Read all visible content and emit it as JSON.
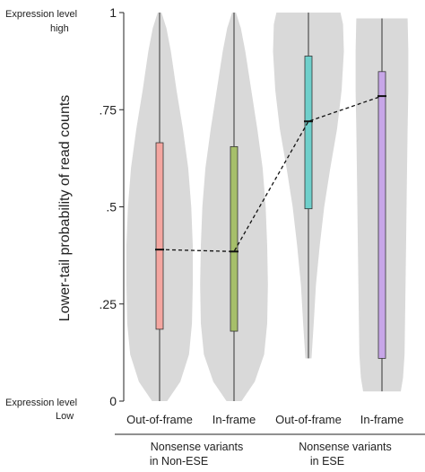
{
  "chart_data": {
    "type": "violin",
    "ylabel": "Lower-tail probability of read counts",
    "ylim": [
      0,
      1
    ],
    "yticks": [
      0,
      0.25,
      0.5,
      0.75,
      1
    ],
    "ytick_labels": [
      "0",
      ".25",
      ".5",
      ".75",
      "1"
    ],
    "y_top_note": [
      "Expression level",
      "high"
    ],
    "y_bottom_note": [
      "Expression level",
      "Low"
    ],
    "categories": [
      "Out-of-frame",
      "In-frame",
      "Out-of-frame",
      "In-frame"
    ],
    "groups": [
      {
        "label": [
          "Nonsense variants",
          "in Non-ESE"
        ],
        "members": [
          0,
          1
        ]
      },
      {
        "label": [
          "Nonsense variants",
          "in ESE"
        ],
        "members": [
          2,
          3
        ]
      }
    ],
    "violin_color": "#d9d9d9",
    "series": [
      {
        "color": "#f4a6a0",
        "min": 0.0,
        "q1": 0.185,
        "median": 0.39,
        "q3": 0.665,
        "max": 1.0,
        "violin": {
          "ymin": 0.0,
          "ymax": 1.0,
          "profile": [
            [
              0.0,
              0.2
            ],
            [
              0.05,
              0.55
            ],
            [
              0.12,
              0.78
            ],
            [
              0.2,
              0.86
            ],
            [
              0.3,
              0.88
            ],
            [
              0.4,
              0.88
            ],
            [
              0.5,
              0.84
            ],
            [
              0.6,
              0.76
            ],
            [
              0.7,
              0.62
            ],
            [
              0.8,
              0.45
            ],
            [
              0.9,
              0.3
            ],
            [
              0.96,
              0.18
            ],
            [
              1.0,
              0.05
            ]
          ]
        }
      },
      {
        "color": "#a6bf6a",
        "min": 0.0,
        "q1": 0.18,
        "median": 0.385,
        "q3": 0.655,
        "max": 1.0,
        "violin": {
          "ymin": 0.0,
          "ymax": 1.0,
          "profile": [
            [
              0.0,
              0.2
            ],
            [
              0.05,
              0.55
            ],
            [
              0.12,
              0.8
            ],
            [
              0.2,
              0.88
            ],
            [
              0.3,
              0.9
            ],
            [
              0.4,
              0.88
            ],
            [
              0.5,
              0.84
            ],
            [
              0.6,
              0.76
            ],
            [
              0.7,
              0.62
            ],
            [
              0.8,
              0.46
            ],
            [
              0.9,
              0.3
            ],
            [
              0.96,
              0.18
            ],
            [
              1.0,
              0.05
            ]
          ]
        }
      },
      {
        "color": "#6fcfcb",
        "min": 0.11,
        "q1": 0.495,
        "median": 0.72,
        "q3": 0.888,
        "max": 1.0,
        "violin": {
          "ymin": 0.11,
          "ymax": 1.0,
          "profile": [
            [
              0.11,
              0.08
            ],
            [
              0.2,
              0.14
            ],
            [
              0.3,
              0.2
            ],
            [
              0.4,
              0.3
            ],
            [
              0.5,
              0.42
            ],
            [
              0.6,
              0.58
            ],
            [
              0.7,
              0.76
            ],
            [
              0.8,
              0.88
            ],
            [
              0.9,
              0.94
            ],
            [
              0.97,
              0.92
            ],
            [
              1.0,
              0.85
            ]
          ]
        }
      },
      {
        "color": "#c7a6e8",
        "min": 0.025,
        "q1": 0.11,
        "median": 0.785,
        "q3": 0.848,
        "max": 0.985,
        "violin": {
          "ymin": 0.025,
          "ymax": 0.985,
          "profile": [
            [
              0.025,
              0.5
            ],
            [
              0.06,
              0.56
            ],
            [
              0.12,
              0.6
            ],
            [
              0.25,
              0.62
            ],
            [
              0.4,
              0.64
            ],
            [
              0.55,
              0.66
            ],
            [
              0.7,
              0.68
            ],
            [
              0.8,
              0.7
            ],
            [
              0.9,
              0.7
            ],
            [
              0.985,
              0.68
            ]
          ]
        }
      }
    ],
    "median_connector": "dashed"
  }
}
